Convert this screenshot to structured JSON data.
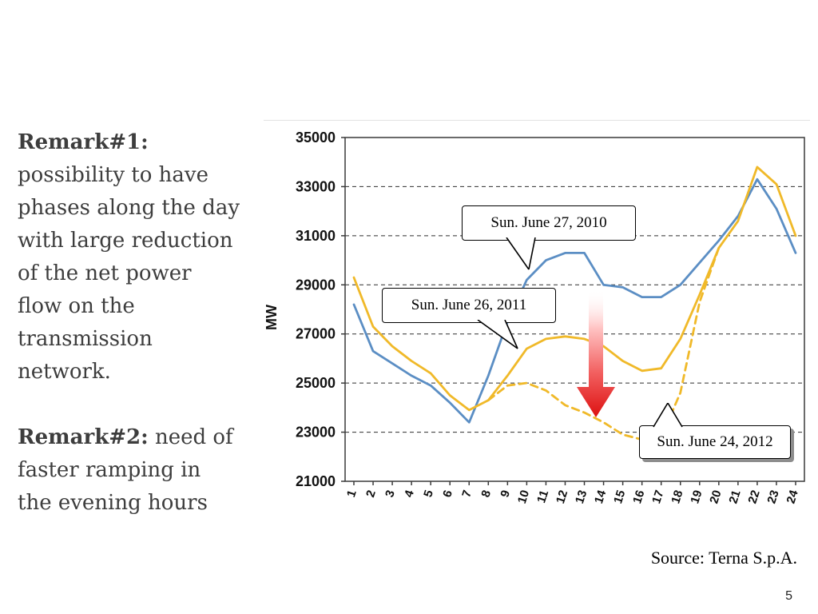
{
  "slide": {
    "remarks": [
      {
        "title": "Remark#1:",
        "text": " possibility to have phases along the day with large reduction of the net power flow on the transmission network."
      },
      {
        "title": "Remark#2:",
        "text": " need of faster ramping in the evening hours"
      }
    ],
    "source": "Source: Terna S.p.A.",
    "page_number": "5"
  },
  "chart_data": {
    "type": "line",
    "title": "",
    "xlabel": "",
    "ylabel": "MW",
    "ylim": [
      21000,
      35000
    ],
    "y_ticks": [
      35000,
      33000,
      31000,
      29000,
      27000,
      25000,
      23000,
      21000
    ],
    "x_ticks": [
      1,
      2,
      3,
      4,
      5,
      6,
      7,
      8,
      9,
      10,
      11,
      12,
      13,
      14,
      15,
      16,
      17,
      18,
      19,
      20,
      21,
      22,
      23,
      24
    ],
    "grid": "horizontal-dashed",
    "legend": "callout-labels-on-plot",
    "series": [
      {
        "name": "Sun. June 27, 2010",
        "color": "#5b8ec4",
        "style": "solid",
        "x": [
          1,
          2,
          3,
          4,
          5,
          6,
          7,
          8,
          9,
          10,
          11,
          12,
          13,
          14,
          15,
          16,
          17,
          18,
          19,
          20,
          21,
          22,
          23,
          24
        ],
        "values": [
          28200,
          26300,
          25800,
          25300,
          24900,
          24200,
          23400,
          25300,
          27500,
          29200,
          30000,
          30300,
          30300,
          29000,
          28900,
          28500,
          28500,
          29000,
          29900,
          30800,
          31800,
          33300,
          32100,
          30300
        ]
      },
      {
        "name": "Sun. June 26, 2011",
        "color": "#f0b929",
        "style": "solid",
        "x": [
          1,
          2,
          3,
          4,
          5,
          6,
          7,
          8,
          9,
          10,
          11,
          12,
          13,
          14,
          15,
          16,
          17,
          18,
          19,
          20,
          21,
          22,
          23,
          24
        ],
        "values": [
          29300,
          27300,
          26500,
          25900,
          25400,
          24500,
          23900,
          24300,
          25300,
          26400,
          26800,
          26900,
          26800,
          26500,
          25900,
          25500,
          25600,
          26800,
          28600,
          30500,
          31600,
          33800,
          33100,
          31000
        ]
      },
      {
        "name": "Sun. June 24, 2012",
        "color": "#f0b929",
        "style": "dashed",
        "x": [
          8,
          9,
          10,
          11,
          12,
          13,
          14,
          15,
          16,
          17,
          18,
          19,
          20
        ],
        "values": [
          24300,
          24900,
          25000,
          24700,
          24100,
          23800,
          23400,
          22900,
          22700,
          22800,
          24600,
          28300,
          30500
        ]
      }
    ],
    "annotation_arrow": {
      "at_hour": 13.5,
      "from_mw": 29000,
      "to_mw": 23500,
      "color_top": "#ffffff",
      "color_bottom": "#dd1111"
    }
  }
}
